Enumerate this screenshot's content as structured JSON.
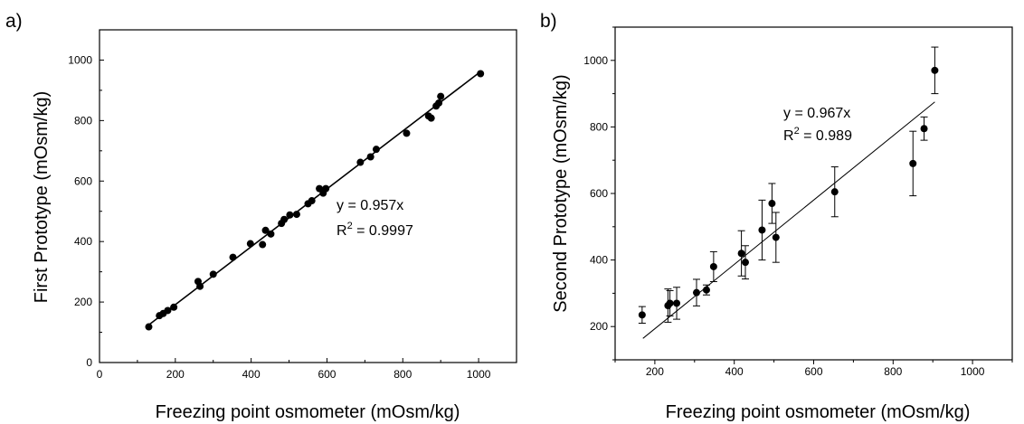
{
  "chart_data": [
    {
      "type": "scatter",
      "panel_label": "a)",
      "title": "",
      "xlabel": "Freezing point osmometer (mOsm/kg)",
      "ylabel": "First Prototype (mOsm/kg)",
      "xlim": [
        0,
        1100
      ],
      "ylim": [
        0,
        1100
      ],
      "xticks": [
        0,
        200,
        400,
        600,
        800,
        1000
      ],
      "yticks": [
        0,
        200,
        400,
        600,
        800,
        1000
      ],
      "grid": false,
      "annotation": {
        "line1": "y = 0.957x",
        "line2_prefix": "R",
        "line2_sup": "2",
        "line2_suffix": " = 0.9997"
      },
      "fit_line": {
        "slope": 0.957,
        "x_range": [
          130,
          1005
        ]
      },
      "points": [
        {
          "x": 130,
          "y": 118
        },
        {
          "x": 158,
          "y": 155
        },
        {
          "x": 168,
          "y": 162
        },
        {
          "x": 180,
          "y": 172
        },
        {
          "x": 196,
          "y": 183
        },
        {
          "x": 260,
          "y": 268
        },
        {
          "x": 265,
          "y": 252
        },
        {
          "x": 300,
          "y": 292
        },
        {
          "x": 352,
          "y": 348
        },
        {
          "x": 398,
          "y": 393
        },
        {
          "x": 430,
          "y": 390
        },
        {
          "x": 438,
          "y": 437
        },
        {
          "x": 452,
          "y": 425
        },
        {
          "x": 480,
          "y": 460
        },
        {
          "x": 487,
          "y": 473
        },
        {
          "x": 502,
          "y": 488
        },
        {
          "x": 520,
          "y": 490
        },
        {
          "x": 550,
          "y": 525
        },
        {
          "x": 560,
          "y": 535
        },
        {
          "x": 580,
          "y": 575
        },
        {
          "x": 590,
          "y": 560
        },
        {
          "x": 597,
          "y": 575
        },
        {
          "x": 688,
          "y": 662
        },
        {
          "x": 715,
          "y": 680
        },
        {
          "x": 730,
          "y": 705
        },
        {
          "x": 810,
          "y": 758
        },
        {
          "x": 868,
          "y": 815
        },
        {
          "x": 875,
          "y": 808
        },
        {
          "x": 888,
          "y": 848
        },
        {
          "x": 895,
          "y": 858
        },
        {
          "x": 900,
          "y": 880
        },
        {
          "x": 1005,
          "y": 955
        }
      ]
    },
    {
      "type": "scatter",
      "panel_label": "b)",
      "title": "",
      "xlabel": "Freezing point osmometer (mOsm/kg)",
      "ylabel": "Second Prototype (mOsm/kg)",
      "xlim": [
        100,
        1100
      ],
      "ylim": [
        100,
        1100
      ],
      "xticks": [
        200,
        400,
        600,
        800,
        1000
      ],
      "yticks": [
        200,
        400,
        600,
        800,
        1000
      ],
      "grid": false,
      "annotation": {
        "line1": "y = 0.967x",
        "line2_prefix": "R",
        "line2_sup": "2",
        "line2_suffix": " = 0.989"
      },
      "fit_line": {
        "slope": 0.967,
        "x_range": [
          170,
          905
        ]
      },
      "points": [
        {
          "x": 168,
          "y": 235,
          "err": 25
        },
        {
          "x": 233,
          "y": 263,
          "err": 50
        },
        {
          "x": 238,
          "y": 270,
          "err": 38
        },
        {
          "x": 255,
          "y": 270,
          "err": 48
        },
        {
          "x": 305,
          "y": 302,
          "err": 40
        },
        {
          "x": 330,
          "y": 310,
          "err": 15
        },
        {
          "x": 348,
          "y": 380,
          "err": 45
        },
        {
          "x": 418,
          "y": 420,
          "err": 68
        },
        {
          "x": 428,
          "y": 393,
          "err": 50
        },
        {
          "x": 470,
          "y": 490,
          "err": 90
        },
        {
          "x": 495,
          "y": 570,
          "err": 60
        },
        {
          "x": 505,
          "y": 468,
          "err": 75
        },
        {
          "x": 653,
          "y": 605,
          "err": 75
        },
        {
          "x": 850,
          "y": 690,
          "err": 97
        },
        {
          "x": 878,
          "y": 795,
          "err": 35
        },
        {
          "x": 905,
          "y": 970,
          "err": 70
        }
      ]
    }
  ]
}
